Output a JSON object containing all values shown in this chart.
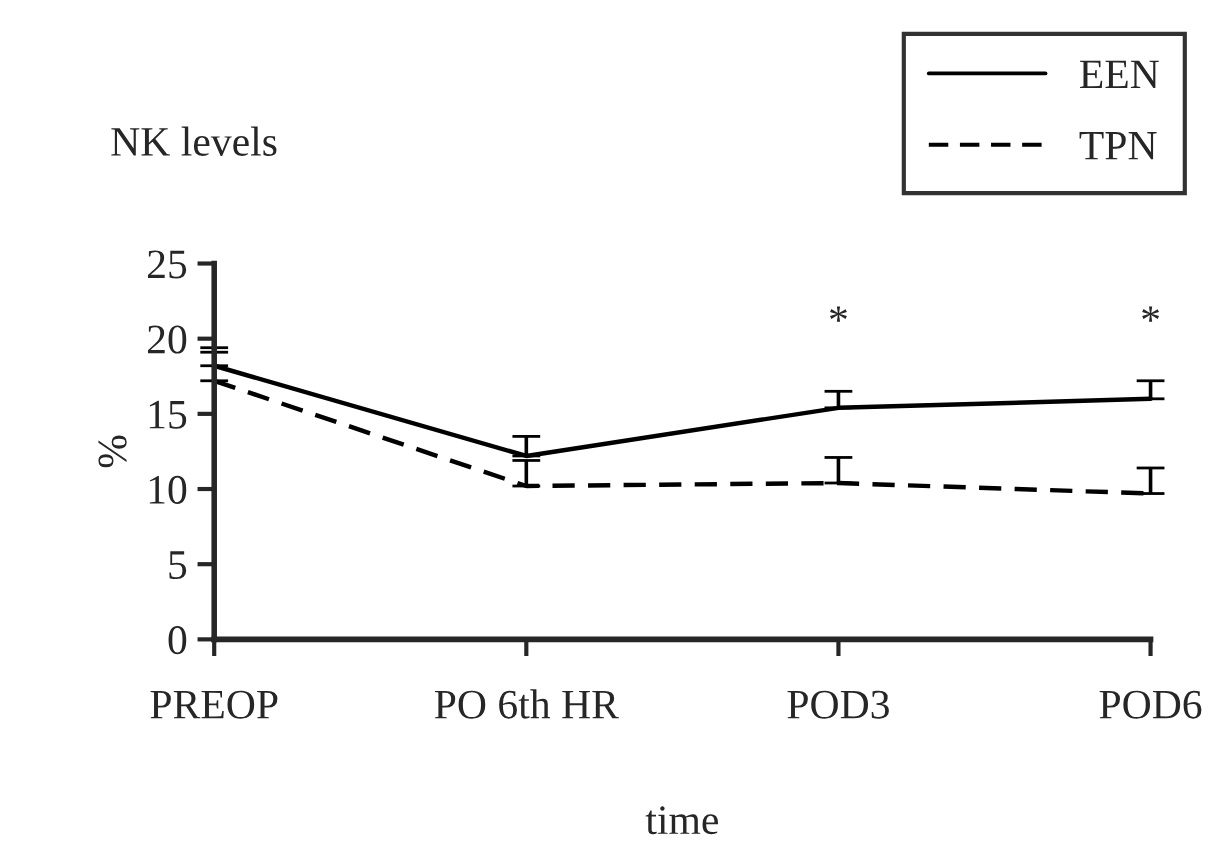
{
  "chart_data": {
    "type": "line",
    "title": "NK levels",
    "xlabel": "time",
    "ylabel": "%",
    "categories": [
      "PREOP",
      "PO 6th HR",
      "POD3",
      "POD6"
    ],
    "series": [
      {
        "name": "EEN",
        "color": "#000000",
        "line_style": "solid",
        "values": [
          18.2,
          12.2,
          15.4,
          16.0
        ],
        "errors": [
          [
            18.2,
            19.4
          ],
          [
            12.2,
            13.5
          ],
          [
            15.4,
            16.5
          ],
          [
            16.0,
            17.2
          ]
        ]
      },
      {
        "name": "TPN",
        "color": "#000000",
        "line_style": "dashed",
        "values": [
          17.2,
          10.2,
          10.4,
          9.7
        ],
        "errors": [
          [
            17.2,
            19.1
          ],
          [
            10.2,
            11.9
          ],
          [
            10.4,
            12.1
          ],
          [
            9.7,
            11.4
          ]
        ]
      }
    ],
    "ylim": [
      0,
      25
    ],
    "yticks": [
      0,
      5,
      10,
      15,
      20,
      25
    ],
    "grid": false,
    "legend": "top right",
    "marker": "none",
    "annotations": [
      "*",
      "*"
    ]
  }
}
